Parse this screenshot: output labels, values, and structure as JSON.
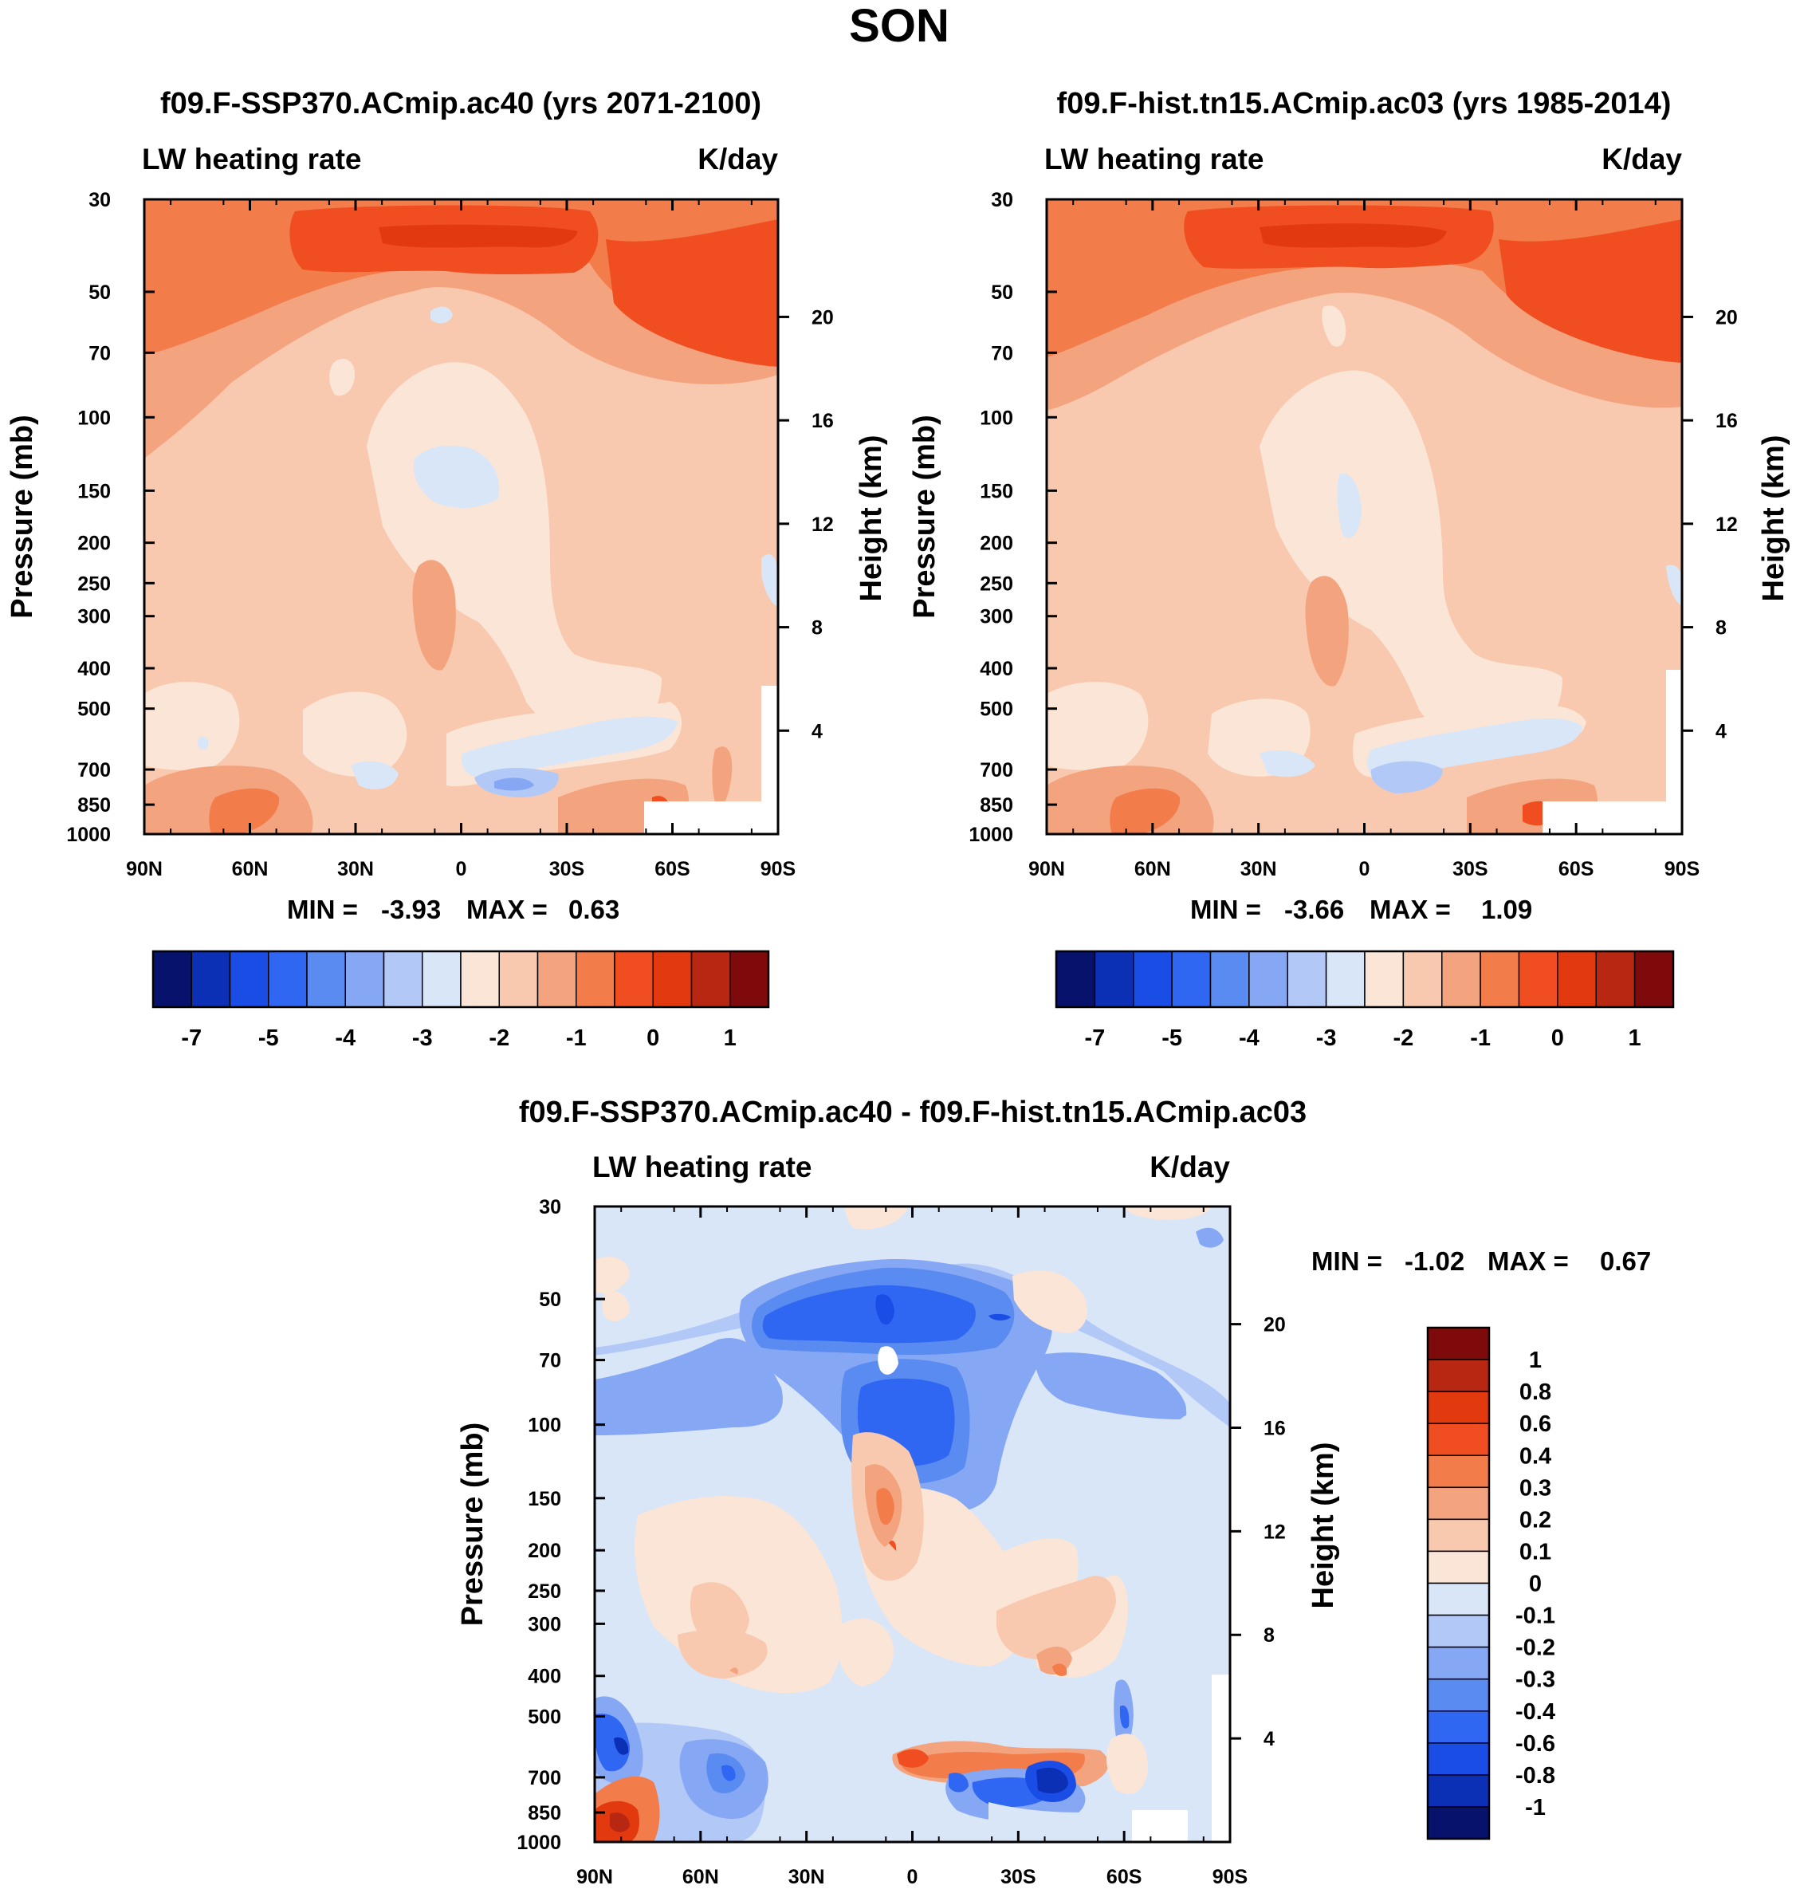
{
  "figure": {
    "season": "SON",
    "variable": "LW heating rate",
    "units": "K/day",
    "y_axis_label": "Pressure (mb)",
    "y2_axis_label": "Height (km)"
  },
  "panels": [
    {
      "title": "f09.F-SSP370.ACmip.ac40 (yrs 2071-2100)",
      "min_label": "MIN =",
      "min_value": "-3.93",
      "max_label": "MAX =",
      "max_value": "0.63"
    },
    {
      "title": "f09.F-hist.tn15.ACmip.ac03 (yrs 1985-2014)",
      "min_label": "MIN =",
      "min_value": "-3.66",
      "max_label": "MAX =",
      "max_value": "1.09"
    },
    {
      "title": "f09.F-SSP370.ACmip.ac40 - f09.F-hist.tn15.ACmip.ac03",
      "min_label": "MIN =",
      "min_value": "-1.02",
      "max_label": "MAX =",
      "max_value": "0.67"
    }
  ],
  "chart_data": [
    {
      "type": "heatmap",
      "title": "f09.F-SSP370.ACmip.ac40 (yrs 2071-2100)",
      "x_ticks": [
        "90N",
        "60N",
        "30N",
        "0",
        "30S",
        "60S",
        "90S"
      ],
      "y_ticks": [
        30,
        50,
        70,
        100,
        150,
        200,
        250,
        300,
        400,
        500,
        700,
        850,
        1000
      ],
      "y2_ticks": [
        20,
        16,
        12,
        8,
        4
      ],
      "ylim": [
        1000,
        30
      ],
      "min": -3.93,
      "max": 0.63,
      "colorbar_labels": [
        "-7",
        "-5",
        "-4",
        "-3",
        "-2",
        "-1",
        "0",
        "1"
      ],
      "colorbar_colors": [
        "#06126b",
        "#0b2fb5",
        "#1a4de5",
        "#2f66f2",
        "#5a8bf0",
        "#86a8f4",
        "#b2c8f7",
        "#d8e6f8",
        "#fbe5d6",
        "#f8c9ae",
        "#f4a37f",
        "#f27c4a",
        "#f04e21",
        "#e3390f",
        "#b72711",
        "#7e0a0b"
      ]
    },
    {
      "type": "heatmap",
      "title": "f09.F-hist.tn15.ACmip.ac03 (yrs 1985-2014)",
      "x_ticks": [
        "90N",
        "60N",
        "30N",
        "0",
        "30S",
        "60S",
        "90S"
      ],
      "y_ticks": [
        30,
        50,
        70,
        100,
        150,
        200,
        250,
        300,
        400,
        500,
        700,
        850,
        1000
      ],
      "y2_ticks": [
        20,
        16,
        12,
        8,
        4
      ],
      "ylim": [
        1000,
        30
      ],
      "min": -3.66,
      "max": 1.09,
      "colorbar_labels": [
        "-7",
        "-5",
        "-4",
        "-3",
        "-2",
        "-1",
        "0",
        "1"
      ],
      "colorbar_colors": [
        "#06126b",
        "#0b2fb5",
        "#1a4de5",
        "#2f66f2",
        "#5a8bf0",
        "#86a8f4",
        "#b2c8f7",
        "#d8e6f8",
        "#fbe5d6",
        "#f8c9ae",
        "#f4a37f",
        "#f27c4a",
        "#f04e21",
        "#e3390f",
        "#b72711",
        "#7e0a0b"
      ]
    },
    {
      "type": "heatmap",
      "title": "f09.F-SSP370.ACmip.ac40 - f09.F-hist.tn15.ACmip.ac03",
      "x_ticks": [
        "90N",
        "60N",
        "30N",
        "0",
        "30S",
        "60S",
        "90S"
      ],
      "y_ticks": [
        30,
        50,
        70,
        100,
        150,
        200,
        250,
        300,
        400,
        500,
        700,
        850,
        1000
      ],
      "y2_ticks": [
        20,
        16,
        12,
        8,
        4
      ],
      "ylim": [
        1000,
        30
      ],
      "min": -1.02,
      "max": 0.67,
      "colorbar_labels": [
        "1",
        "0.8",
        "0.6",
        "0.4",
        "0.3",
        "0.2",
        "0.1",
        "0",
        "-0.1",
        "-0.2",
        "-0.3",
        "-0.4",
        "-0.6",
        "-0.8",
        "-1"
      ],
      "colorbar_colors": [
        "#7e0a0b",
        "#b72711",
        "#e3390f",
        "#f04e21",
        "#f27c4a",
        "#f4a37f",
        "#f8c9ae",
        "#fbe5d6",
        "#d8e6f8",
        "#b2c8f7",
        "#86a8f4",
        "#5a8bf0",
        "#2f66f2",
        "#1a4de5",
        "#0b2fb5",
        "#06126b"
      ]
    }
  ]
}
